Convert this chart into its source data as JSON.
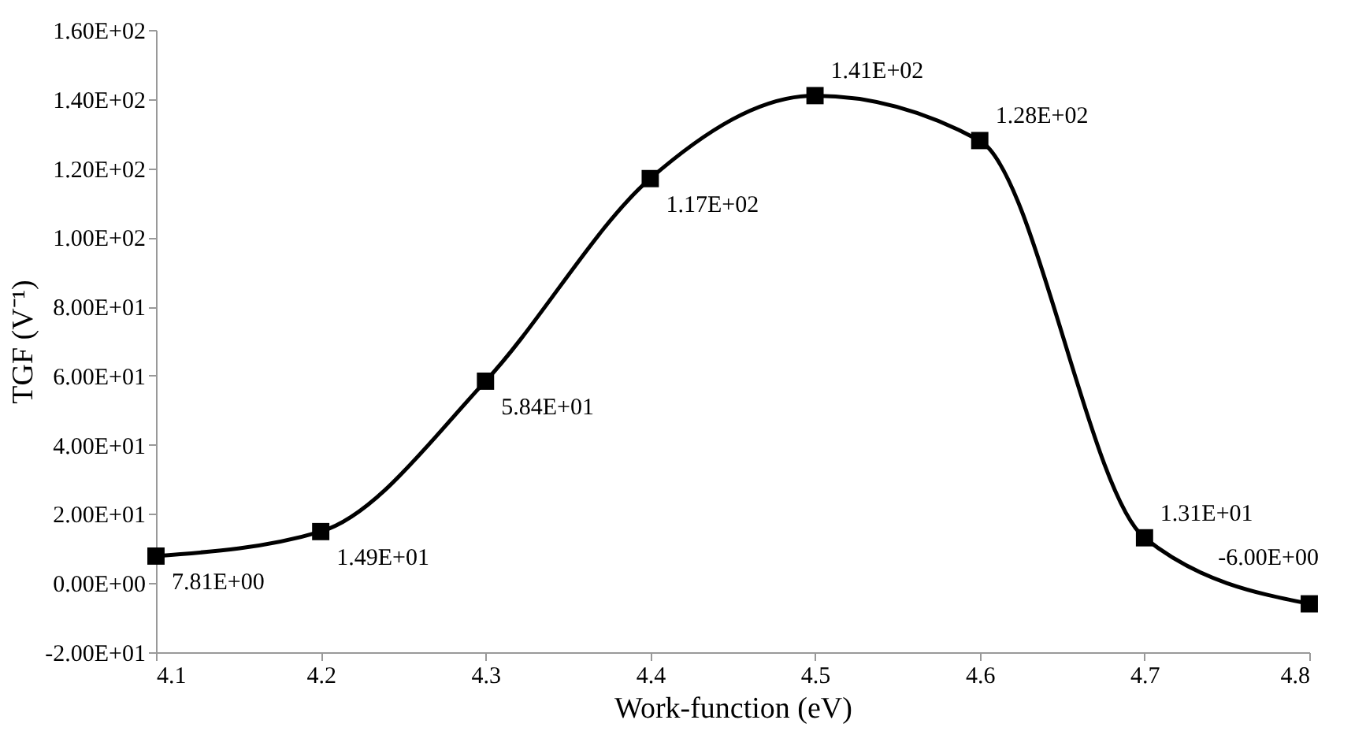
{
  "chart_data": {
    "type": "line",
    "xlabel": "Work-function (eV)",
    "ylabel": "TGF (V⁻¹)",
    "x": [
      4.1,
      4.2,
      4.3,
      4.4,
      4.5,
      4.6,
      4.7,
      4.8
    ],
    "series": [
      {
        "color": "#000000",
        "values": [
          7.81,
          14.9,
          58.4,
          117,
          141,
          128,
          13.1,
          -6.0
        ],
        "value_labels": [
          "7.81E+00",
          "1.49E+01",
          "5.84E+01",
          "1.17E+02",
          "1.41E+02",
          "1.28E+02",
          "1.31E+01",
          "-6.00E+00"
        ]
      }
    ],
    "xlim": [
      4.1,
      4.8
    ],
    "xticks": [
      4.1,
      4.2,
      4.3,
      4.4,
      4.5,
      4.6,
      4.7,
      4.8
    ],
    "ylim": [
      -20,
      160
    ],
    "yticks": [
      {
        "value": -20,
        "label": "-2.00E+01"
      },
      {
        "value": 0,
        "label": "0.00E+00"
      },
      {
        "value": 20,
        "label": "2.00E+01"
      },
      {
        "value": 40,
        "label": "4.00E+01"
      },
      {
        "value": 60,
        "label": "6.00E+01"
      },
      {
        "value": 80,
        "label": "8.00E+01"
      },
      {
        "value": 100,
        "label": "1.00E+02"
      },
      {
        "value": 120,
        "label": "1.20E+02"
      },
      {
        "value": 140,
        "label": "1.40E+02"
      },
      {
        "value": 160,
        "label": "1.60E+02"
      }
    ],
    "marker": "square",
    "line_style": "solid",
    "grid": false
  }
}
